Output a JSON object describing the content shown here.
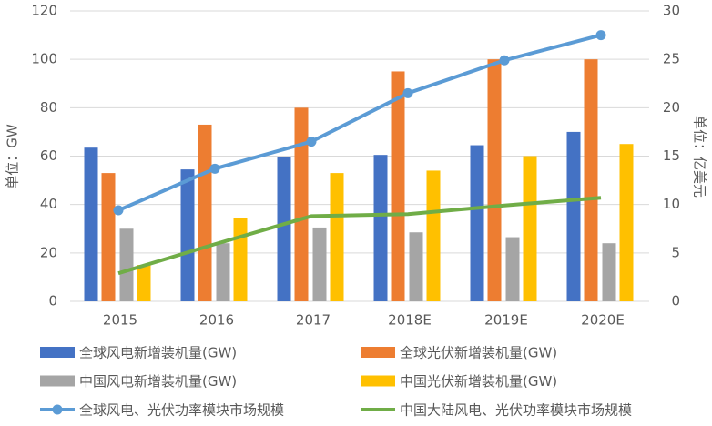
{
  "chart_data": {
    "type": "bar",
    "y_label": "单位：GW",
    "y2_label": "单位：亿美元",
    "categories": [
      "2015",
      "2016",
      "2017",
      "2018E",
      "2019E",
      "2020E"
    ],
    "ylim": [
      0,
      120
    ],
    "yticks": [
      0,
      20,
      40,
      60,
      80,
      100,
      120
    ],
    "y2lim": [
      0,
      30
    ],
    "y2ticks": [
      0,
      5,
      10,
      15,
      20,
      25,
      30
    ],
    "grid": true,
    "legend": "bottom",
    "series": [
      {
        "name": "全球风电新增装机量(GW)",
        "type": "bar",
        "color": "#4472c4",
        "values": [
          63.5,
          54.5,
          59.5,
          60.5,
          64.5,
          70
        ]
      },
      {
        "name": "全球光伏新增装机量(GW)",
        "type": "bar",
        "color": "#ed7d31",
        "values": [
          53,
          73,
          80,
          95,
          100,
          100
        ]
      },
      {
        "name": "中国风电新增装机量(GW)",
        "type": "bar",
        "color": "#a5a5a5",
        "values": [
          30,
          24,
          30.5,
          28.5,
          26.5,
          24
        ]
      },
      {
        "name": "中国光伏新增装机量(GW)",
        "type": "bar",
        "color": "#ffc000",
        "values": [
          15,
          34.5,
          53,
          54,
          60,
          65
        ]
      },
      {
        "name": "全球风电、光伏功率模块市场规模",
        "type": "line",
        "axis": "y2",
        "marker": true,
        "color": "#5b9bd5",
        "values": [
          9.4,
          13.7,
          16.5,
          21.5,
          24.9,
          27.5
        ]
      },
      {
        "name": "中国大陆风电、光伏功率模块市场规模",
        "type": "line",
        "axis": "y2",
        "marker": false,
        "color": "#70ad47",
        "values": [
          2.9,
          5.9,
          8.8,
          9.0,
          9.9,
          10.7
        ]
      }
    ]
  }
}
